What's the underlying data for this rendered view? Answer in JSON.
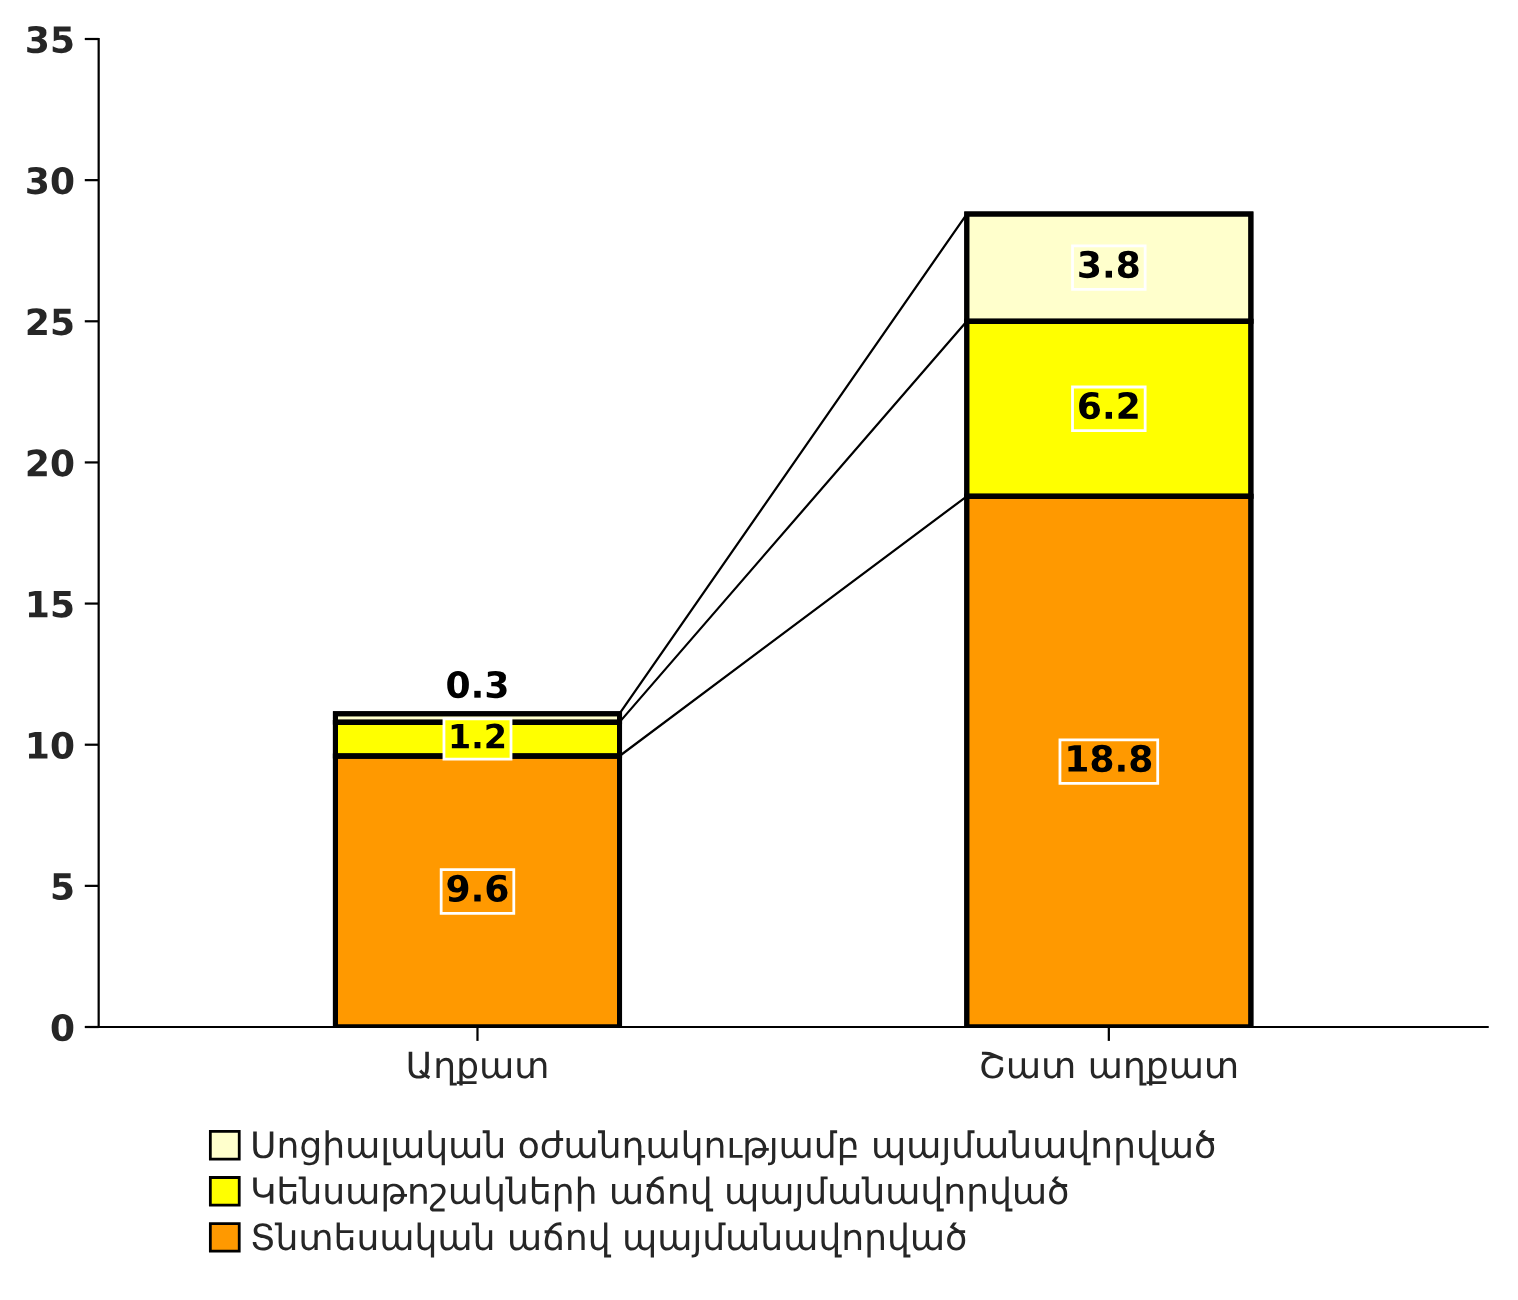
{
  "chart_data": {
    "type": "bar",
    "stacked": true,
    "categories": [
      "Աղքատ",
      "Շատ աղքատ"
    ],
    "series": [
      {
        "name": "Տնտեսական աճով պայմանավորված",
        "color": "#ff9900",
        "values": [
          9.6,
          18.8
        ]
      },
      {
        "name": "Կենսաթոշակների աճով պայմանավորված",
        "color": "#ffff00",
        "values": [
          1.2,
          6.2
        ]
      },
      {
        "name": "Սոցիալական օժանդակությամբ պայմանավորված",
        "color": "#ffffcc",
        "values": [
          0.3,
          3.8
        ]
      }
    ],
    "ylim": [
      0,
      35
    ],
    "yticks": [
      0,
      5,
      10,
      15,
      20,
      25,
      30,
      35
    ],
    "grid": false,
    "legend": "bottom",
    "data_labels": true
  }
}
